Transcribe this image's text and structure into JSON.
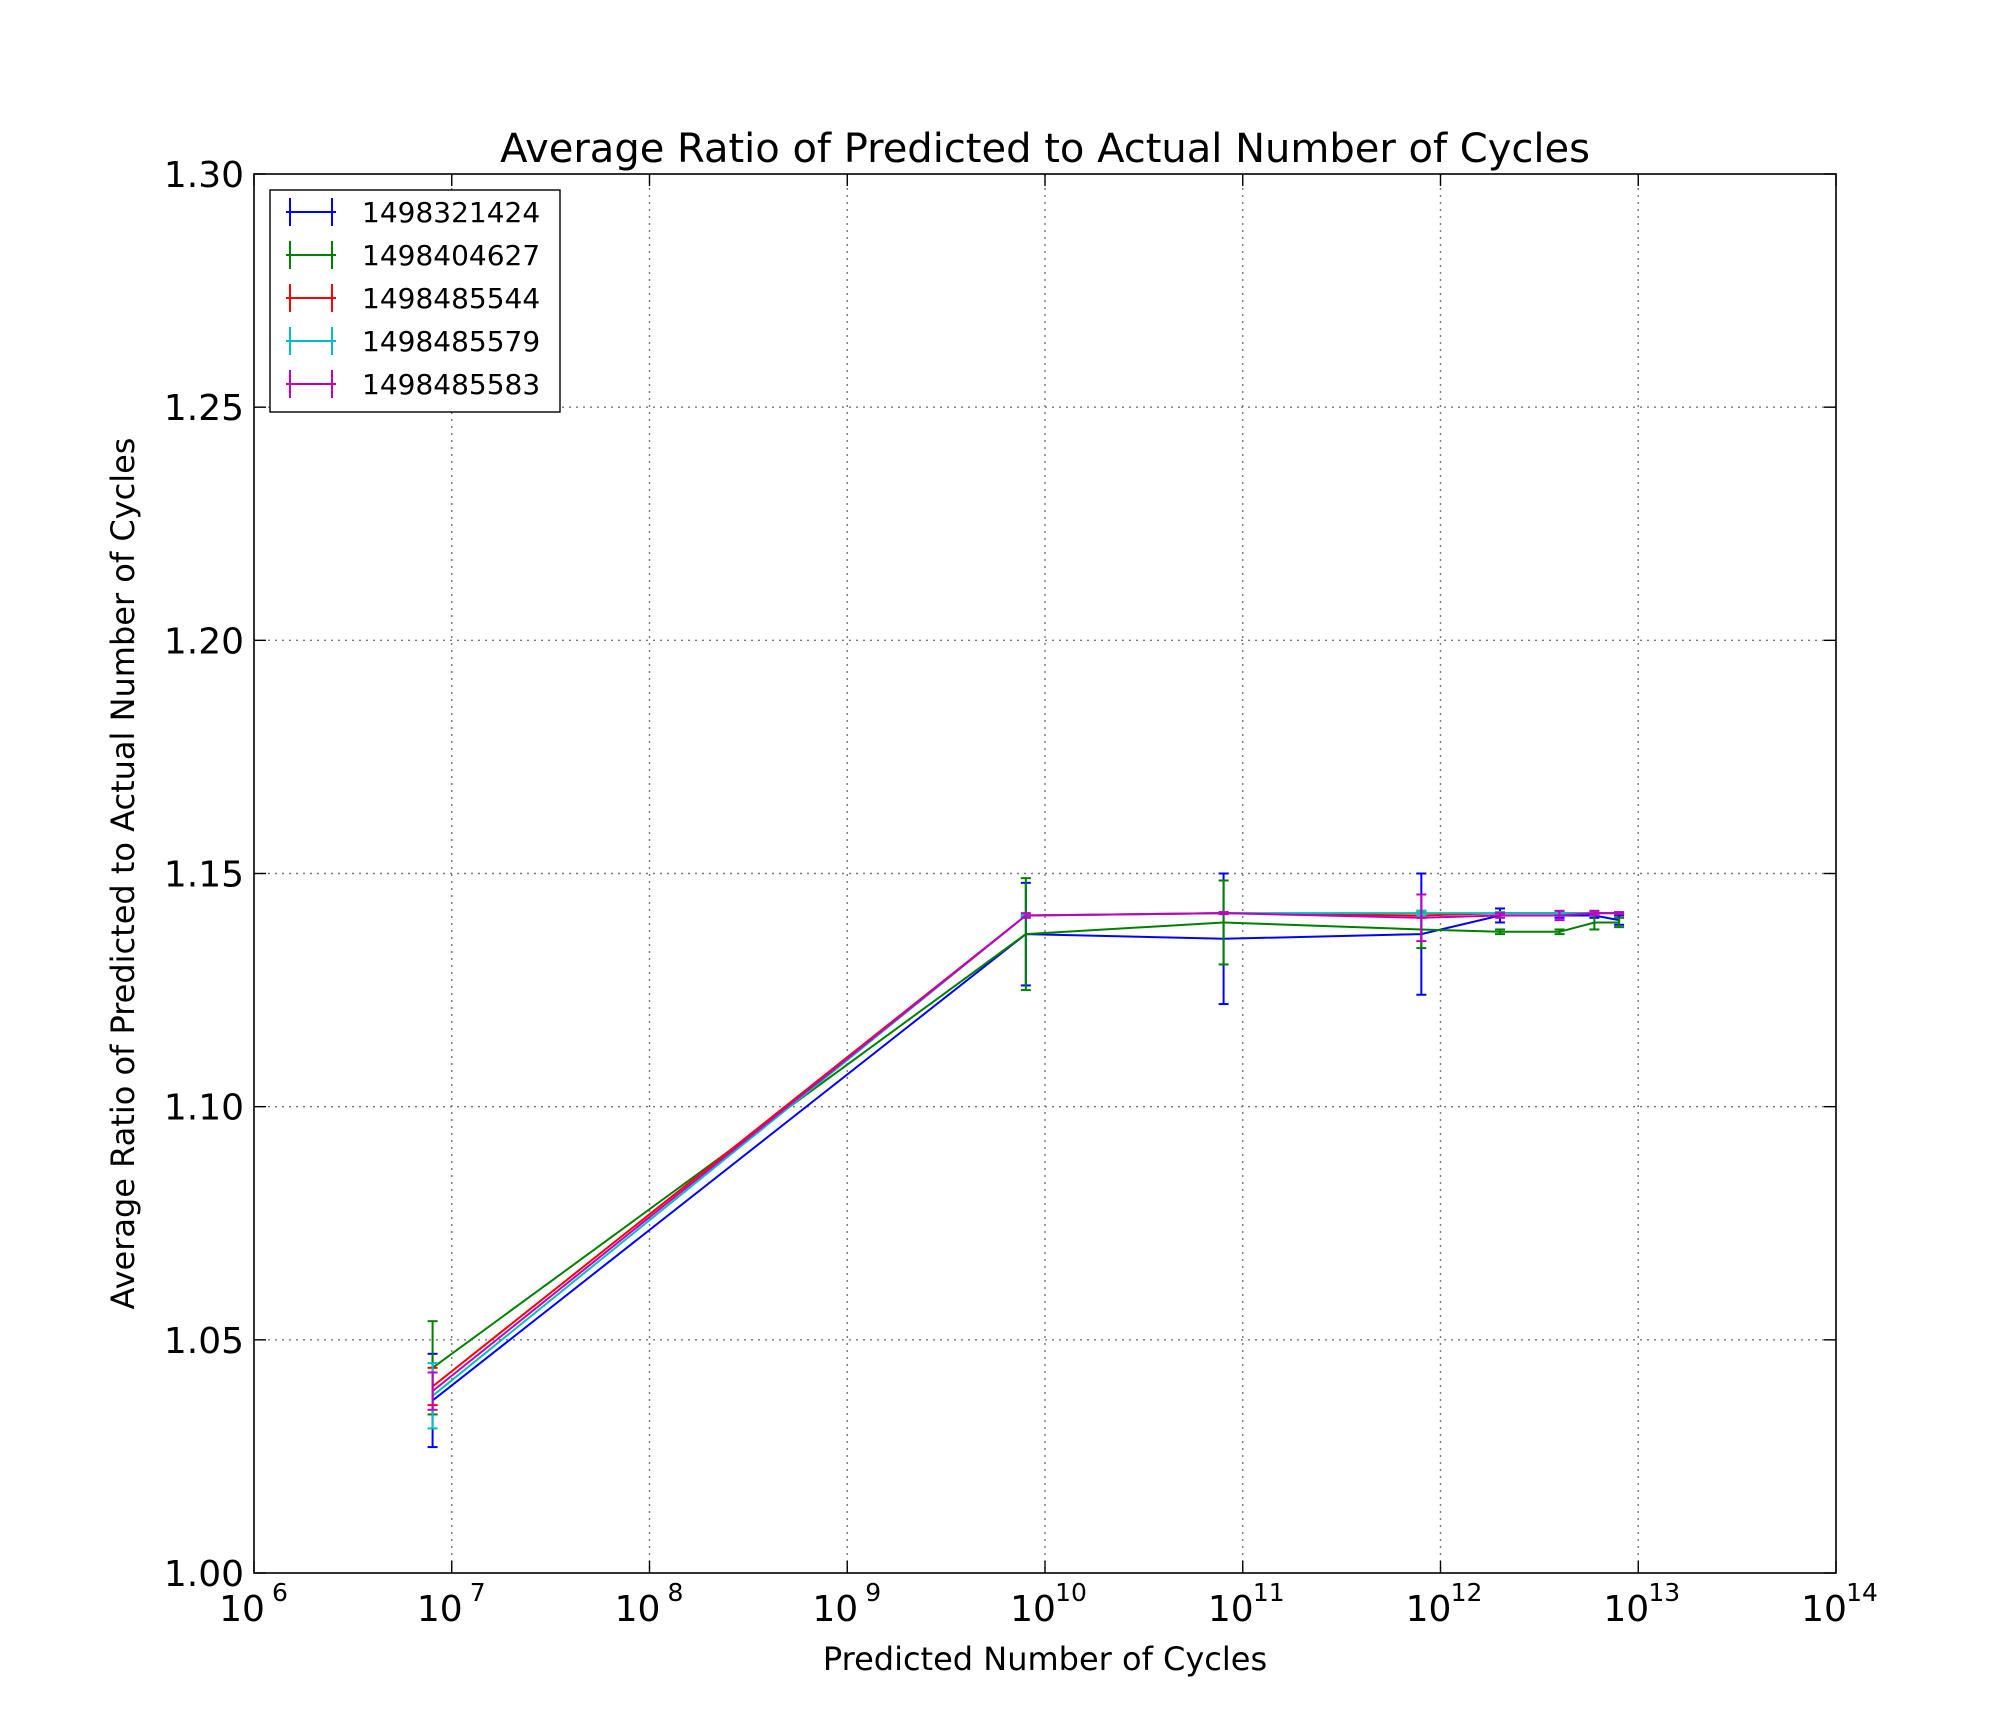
{
  "chart_data": {
    "type": "line",
    "title": "Average Ratio of Predicted to Actual Number of Cycles",
    "xlabel": "Predicted Number of Cycles",
    "ylabel": "Average Ratio of Predicted to Actual Number of Cycles",
    "xscale": "log",
    "xlim": [
      1000000,
      100000000000000
    ],
    "ylim": [
      1.0,
      1.3
    ],
    "x_ticks": [
      {
        "base": "10",
        "exp": "6",
        "value": 1000000
      },
      {
        "base": "10",
        "exp": "7",
        "value": 10000000
      },
      {
        "base": "10",
        "exp": "8",
        "value": 100000000
      },
      {
        "base": "10",
        "exp": "9",
        "value": 1000000000
      },
      {
        "base": "10",
        "exp": "10",
        "value": 10000000000
      },
      {
        "base": "10",
        "exp": "11",
        "value": 100000000000
      },
      {
        "base": "10",
        "exp": "12",
        "value": 1000000000000
      },
      {
        "base": "10",
        "exp": "13",
        "value": 10000000000000
      },
      {
        "base": "10",
        "exp": "14",
        "value": 100000000000000
      }
    ],
    "y_ticks": [
      "1.00",
      "1.05",
      "1.10",
      "1.15",
      "1.20",
      "1.25",
      "1.30"
    ],
    "grid": true,
    "legend_position": "top-left",
    "series": [
      {
        "name": "1498321424",
        "color": "#0000ff",
        "points": [
          {
            "x": 8000000,
            "y": 1.037,
            "err": 0.01
          },
          {
            "x": 8000000000,
            "y": 1.137,
            "err": 0.011
          },
          {
            "x": 80000000000,
            "y": 1.136,
            "err": 0.014
          },
          {
            "x": 800000000000,
            "y": 1.137,
            "err": 0.013
          },
          {
            "x": 2000000000000,
            "y": 1.141,
            "err": 0.0015
          },
          {
            "x": 4000000000000,
            "y": 1.141,
            "err": 0.0005
          },
          {
            "x": 6000000000000,
            "y": 1.141,
            "err": 0.0005
          },
          {
            "x": 8000000000000,
            "y": 1.14,
            "err": 0.001
          }
        ]
      },
      {
        "name": "1498404627",
        "color": "#008000",
        "points": [
          {
            "x": 8000000,
            "y": 1.044,
            "err": 0.01
          },
          {
            "x": 8000000000,
            "y": 1.137,
            "err": 0.012
          },
          {
            "x": 80000000000,
            "y": 1.1395,
            "err": 0.009
          },
          {
            "x": 800000000000,
            "y": 1.138,
            "err": 0.004
          },
          {
            "x": 2000000000000,
            "y": 1.1375,
            "err": 0.0005
          },
          {
            "x": 4000000000000,
            "y": 1.1375,
            "err": 0.0005
          },
          {
            "x": 6000000000000,
            "y": 1.1395,
            "err": 0.0015
          },
          {
            "x": 8000000000000,
            "y": 1.1395,
            "err": 0.001
          }
        ]
      },
      {
        "name": "1498485544",
        "color": "#ff0000",
        "points": [
          {
            "x": 8000000,
            "y": 1.04,
            "err": 0.004
          },
          {
            "x": 8000000000,
            "y": 1.141,
            "err": 0.0002
          },
          {
            "x": 80000000000,
            "y": 1.1415,
            "err": 0.0002
          },
          {
            "x": 800000000000,
            "y": 1.141,
            "err": 0.0005
          },
          {
            "x": 2000000000000,
            "y": 1.1415,
            "err": 0.0002
          },
          {
            "x": 4000000000000,
            "y": 1.1415,
            "err": 0.0002
          },
          {
            "x": 6000000000000,
            "y": 1.1415,
            "err": 0.0002
          },
          {
            "x": 8000000000000,
            "y": 1.1415,
            "err": 0.0002
          }
        ]
      },
      {
        "name": "1498485579",
        "color": "#00bfbf",
        "points": [
          {
            "x": 8000000,
            "y": 1.038,
            "err": 0.007
          },
          {
            "x": 8000000000,
            "y": 1.141,
            "err": 0.0002
          },
          {
            "x": 80000000000,
            "y": 1.1415,
            "err": 0.0002
          },
          {
            "x": 800000000000,
            "y": 1.1415,
            "err": 0.0005
          },
          {
            "x": 2000000000000,
            "y": 1.1415,
            "err": 0.0002
          },
          {
            "x": 4000000000000,
            "y": 1.1415,
            "err": 0.0002
          },
          {
            "x": 6000000000000,
            "y": 1.1415,
            "err": 0.0002
          },
          {
            "x": 8000000000000,
            "y": 1.1415,
            "err": 0.0002
          }
        ]
      },
      {
        "name": "1498485583",
        "color": "#bf00bf",
        "points": [
          {
            "x": 8000000,
            "y": 1.039,
            "err": 0.004
          },
          {
            "x": 8000000000,
            "y": 1.141,
            "err": 0.0005
          },
          {
            "x": 80000000000,
            "y": 1.1415,
            "err": 0.0002
          },
          {
            "x": 800000000000,
            "y": 1.1405,
            "err": 0.005
          },
          {
            "x": 2000000000000,
            "y": 1.141,
            "err": 0.0005
          },
          {
            "x": 4000000000000,
            "y": 1.141,
            "err": 0.001
          },
          {
            "x": 6000000000000,
            "y": 1.1415,
            "err": 0.0005
          },
          {
            "x": 8000000000000,
            "y": 1.1415,
            "err": 0.0002
          }
        ]
      }
    ]
  }
}
